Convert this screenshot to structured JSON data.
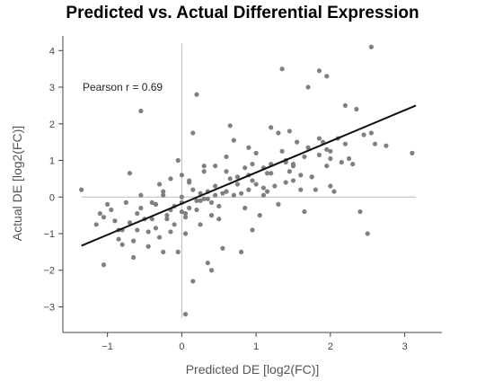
{
  "chart_data": {
    "type": "scatter",
    "title": "Predicted vs. Actual Differential Expression",
    "xlabel": "Predicted DE [log2(FC)]",
    "ylabel": "Actual DE [log2(FC)]",
    "xlim": [
      -1.6,
      3.5
    ],
    "ylim": [
      -3.7,
      4.4
    ],
    "xticks": [
      -1,
      0,
      1,
      2,
      3
    ],
    "xtick_labels": [
      "−1",
      "0",
      "1",
      "2",
      "3"
    ],
    "yticks": [
      -3,
      -2,
      -1,
      0,
      1,
      2,
      3,
      4
    ],
    "ytick_labels": [
      "−3",
      "−2",
      "−1",
      "0",
      "1",
      "2",
      "3",
      "4"
    ],
    "grid": false,
    "zero_lines": true,
    "annotation": "Pearson r = 0.69",
    "regression_line": {
      "x": [
        -1.35,
        3.15
      ],
      "y": [
        -1.33,
        2.5
      ]
    },
    "point_color": "#808080",
    "line_color": "#111111",
    "x": [
      -1.35,
      -1.15,
      -1.05,
      -0.85,
      -0.55,
      -0.25,
      0.05,
      0.2,
      0.35,
      0.95,
      1.35,
      1.85,
      1.95,
      2.55,
      3.1,
      -0.65,
      -0.25,
      0.15,
      0.6,
      1.2,
      1.7,
      2.2,
      2.5,
      0.1,
      0.3,
      2.05,
      1.55,
      2.35,
      1.85,
      2.6,
      0.05,
      -0.1,
      0.45,
      -0.2,
      -0.35,
      0.25,
      0.9,
      1.5,
      1.95,
      2.1,
      2.45,
      2.75,
      -0.8,
      -1.05,
      -0.55,
      0.05,
      0.35,
      0.75,
      1.1,
      1.4,
      1.75,
      2.0,
      2.25,
      2.55,
      -0.95,
      -0.7,
      -0.45,
      -0.2,
      0.0,
      0.2,
      0.45,
      0.7,
      0.95,
      1.2,
      1.45,
      1.7,
      1.95,
      2.2,
      -0.85,
      -0.6,
      -0.35,
      -0.1,
      0.15,
      0.4,
      0.65,
      0.9,
      1.15,
      1.4,
      1.65,
      1.9,
      2.15,
      -1.1,
      -0.75,
      -0.5,
      -0.25,
      0.0,
      0.25,
      0.5,
      0.75,
      1.0,
      1.25,
      1.5,
      1.75,
      2.0,
      -0.9,
      -0.65,
      -0.4,
      -0.15,
      0.1,
      0.35,
      0.6,
      0.85,
      1.1,
      1.35,
      1.6,
      1.85,
      -0.45,
      -0.15,
      0.25,
      0.55,
      0.85,
      1.15,
      -0.3,
      0.0,
      0.3,
      0.6,
      0.9,
      1.2,
      1.5,
      0.05,
      -0.05,
      0.15,
      0.4,
      0.8,
      1.3,
      1.8,
      2.3,
      -0.6,
      -0.3,
      0.1,
      0.5,
      0.95,
      1.45,
      -0.8,
      -0.4,
      0.0,
      0.4,
      0.8,
      1.6,
      2.0,
      -1.0,
      -0.55,
      -0.05,
      0.45,
      1.0,
      1.3,
      -0.15,
      0.55,
      1.05,
      1.65,
      -0.35,
      0.3,
      0.7,
      1.1,
      -0.7,
      0.2,
      0.65,
      1.4,
      2.4
    ],
    "y": [
      0.2,
      -0.75,
      -1.85,
      -0.9,
      2.35,
      0.15,
      -3.2,
      2.8,
      -1.8,
      -0.9,
      3.5,
      3.45,
      3.3,
      4.1,
      1.2,
      -1.65,
      -1.5,
      1.75,
      0.7,
      1.9,
      3.0,
      2.5,
      -1.0,
      -0.3,
      -0.05,
      0.15,
      1.5,
      2.4,
      1.6,
      1.45,
      -0.55,
      -0.25,
      0.05,
      -0.6,
      -0.85,
      -0.1,
      0.6,
      0.9,
      1.3,
      1.6,
      1.7,
      1.4,
      -0.9,
      -0.55,
      -0.3,
      -0.45,
      0.15,
      0.35,
      0.8,
      1.0,
      0.55,
      1.25,
      1.05,
      1.75,
      -0.35,
      -0.7,
      -0.95,
      -0.5,
      -0.15,
      -0.35,
      0.3,
      0.05,
      0.45,
      0.9,
      0.7,
      1.35,
      0.85,
      1.45,
      -1.15,
      -0.45,
      -0.2,
      -0.75,
      0.2,
      -0.15,
      0.5,
      0.2,
      0.65,
      0.4,
      1.1,
      1.5,
      0.95,
      -0.45,
      -0.15,
      -0.6,
      0.05,
      -0.4,
      0.1,
      -0.25,
      0.55,
      0.35,
      0.3,
      0.85,
      0.55,
      1.05,
      -0.65,
      -1.2,
      -0.15,
      -0.35,
      0.45,
      -0.05,
      0.15,
      0.8,
      0.25,
      1.25,
      0.6,
      1.15,
      -1.35,
      -0.95,
      -0.75,
      0.1,
      -0.3,
      0.15,
      0.35,
      0.6,
      0.85,
      1.1,
      1.35,
      0.65,
      0.45,
      -1.0,
      -1.5,
      -2.3,
      -2.0,
      -1.5,
      -0.2,
      0.2,
      0.9,
      -0.9,
      -1.1,
      0.4,
      -0.6,
      0.9,
      1.8,
      -1.3,
      -0.6,
      0.0,
      -0.5,
      0.1,
      0.2,
      0.3,
      -0.2,
      0.05,
      1.0,
      0.85,
      1.2,
      1.75,
      0.5,
      -1.4,
      -0.5,
      -0.4,
      -0.2,
      0.7,
      1.55,
      0.05,
      0.65,
      -0.1,
      1.95,
      0.95,
      -0.4
    ]
  }
}
